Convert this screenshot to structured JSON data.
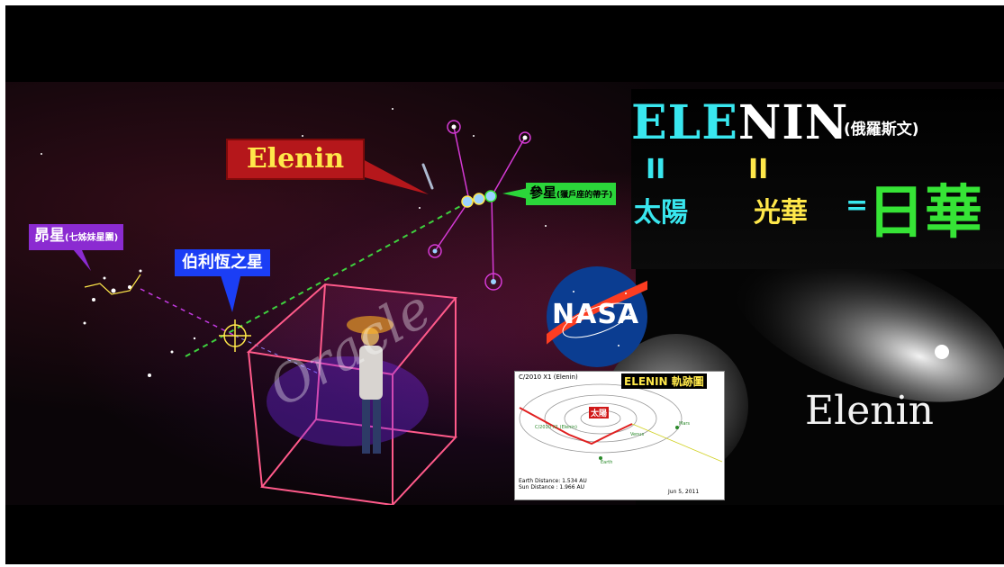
{
  "callouts": {
    "elenin": "Elenin",
    "pleiades": "昴星",
    "pleiades_note": "(七姊妹星團)",
    "bethlehem": "伯利恆之星",
    "orion": "參星",
    "orion_note": "(獵戶座的帶子)"
  },
  "title": {
    "elenin_colored": "ELE",
    "elenin_white": "NIN",
    "russian": "(俄羅斯文)",
    "eq_mark": "II",
    "sun": "太陽",
    "glory": "光華",
    "equals": "=",
    "sun_glory": "日華"
  },
  "comet_label": "Elenin",
  "watermark": "Oracle",
  "nasa_logo": "NASA",
  "orbit_chart": {
    "object": "C/2010 X1 (Elenin)",
    "heading": "ELENIN 軌跡圖",
    "sun_label": "太陽",
    "orbit_label": "C/2010 X1 (Elenin)",
    "mars": "Mars",
    "earth": "Earth",
    "venus": "Venus",
    "earth_distance": "Earth Distance: 1.534 AU",
    "sun_distance": "Sun Distance : 1.966 AU",
    "date": "Jun 5, 2011"
  },
  "colors": {
    "cyan": "#39e7ef",
    "yellow": "#ffe84a",
    "green": "#36e436",
    "red_callout": "#b5171b",
    "purple_callout": "#8b2bd1",
    "blue_callout": "#1b3ef5"
  }
}
